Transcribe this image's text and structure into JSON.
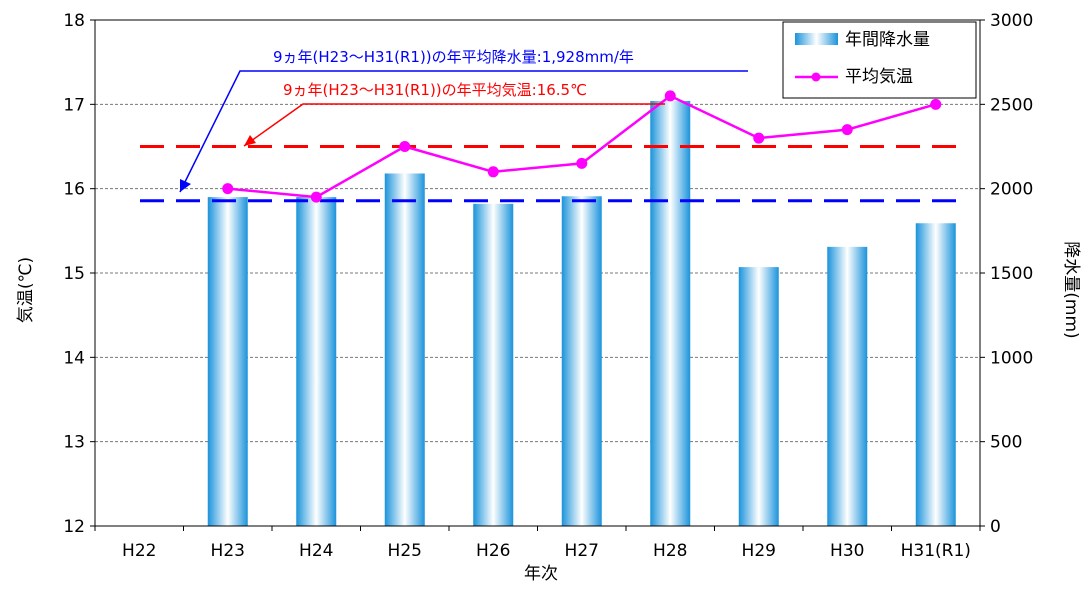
{
  "chart_data": {
    "type": "bar",
    "xlabel": "年次",
    "ylabel_left": "気温(℃)",
    "ylabel_right": "降水量(mm)",
    "categories": [
      "H22",
      "H23",
      "H24",
      "H25",
      "H26",
      "H27",
      "H28",
      "H29",
      "H30",
      "H31(R1)"
    ],
    "y_left": {
      "min": 12,
      "max": 18,
      "ticks": [
        12,
        13,
        14,
        15,
        16,
        17,
        18
      ]
    },
    "y_right": {
      "min": 0,
      "max": 3000,
      "ticks": [
        0,
        500,
        1000,
        1500,
        2000,
        2500,
        3000
      ]
    },
    "grid": "horizontal dashed",
    "legend_position": "top-right",
    "series": [
      {
        "name": "年間降水量",
        "type": "bar",
        "axis": "right",
        "color": "#5fb2e8",
        "values": [
          null,
          1950,
          1950,
          2090,
          1910,
          1955,
          2520,
          1535,
          1655,
          1795
        ]
      },
      {
        "name": "平均気温",
        "type": "line",
        "axis": "left",
        "color": "#ff00ff",
        "values": [
          null,
          16.0,
          15.9,
          16.5,
          16.2,
          16.3,
          17.1,
          16.6,
          16.7,
          17.0
        ]
      }
    ],
    "reference_lines": [
      {
        "label": "9ヵ年(H23～H31(R1))の年平均気温:16.5℃",
        "axis": "left",
        "value": 16.5,
        "color": "#ff0000"
      },
      {
        "label": "9ヵ年(H23～H31(R1))の年平均降水量:1,928mm/年",
        "axis": "right",
        "value": 1928,
        "color": "#0000ff"
      }
    ]
  }
}
